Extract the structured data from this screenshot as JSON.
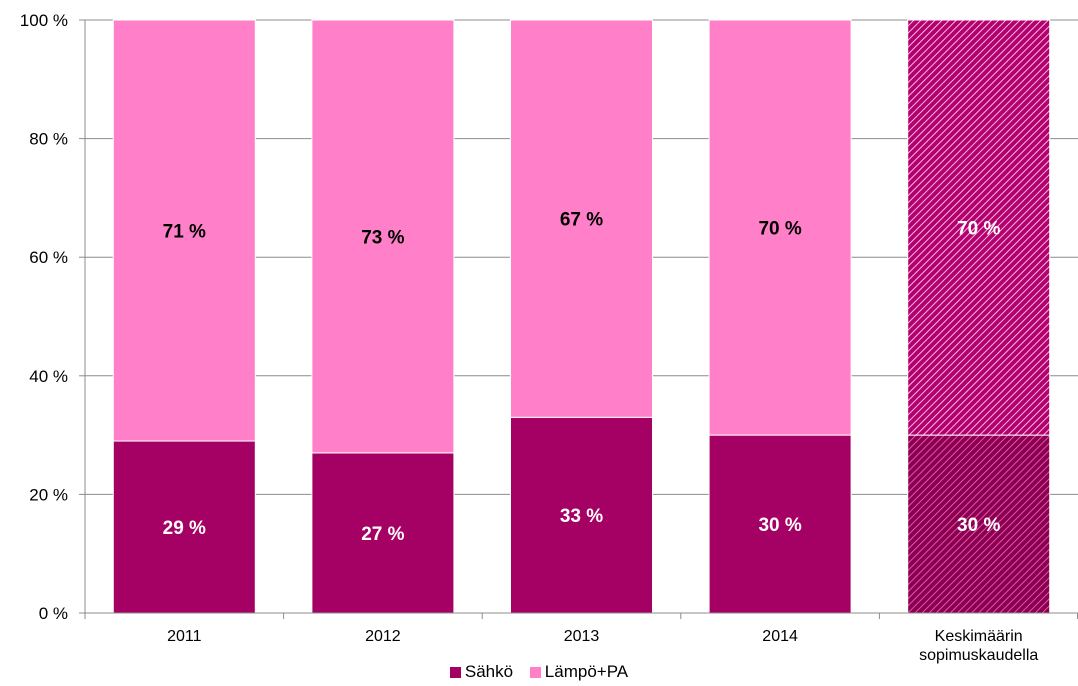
{
  "chart_data": {
    "type": "bar",
    "stacked": true,
    "percent_stacked": true,
    "categories": [
      "2011",
      "2012",
      "2013",
      "2014",
      "Keskimäärin sopimuskaudella"
    ],
    "series": [
      {
        "name": "Sähkö",
        "values": [
          29,
          27,
          33,
          30,
          30
        ],
        "labels": [
          "29 %",
          "27 %",
          "33 %",
          "30 %",
          "30 %"
        ],
        "color": "#a50064"
      },
      {
        "name": "Lämpö+PA",
        "values": [
          71,
          73,
          67,
          70,
          70
        ],
        "labels": [
          "71 %",
          "73 %",
          "67 %",
          "70 %",
          "70 %"
        ],
        "color": "#ff80c8"
      }
    ],
    "hatched_category": "Keskimäärin sopimuskaudella",
    "y_ticks": [
      "0 %",
      "20 %",
      "40 %",
      "60 %",
      "80 %",
      "100 %"
    ],
    "ylim": [
      0,
      100
    ],
    "grid": true,
    "legend_position": "bottom"
  }
}
